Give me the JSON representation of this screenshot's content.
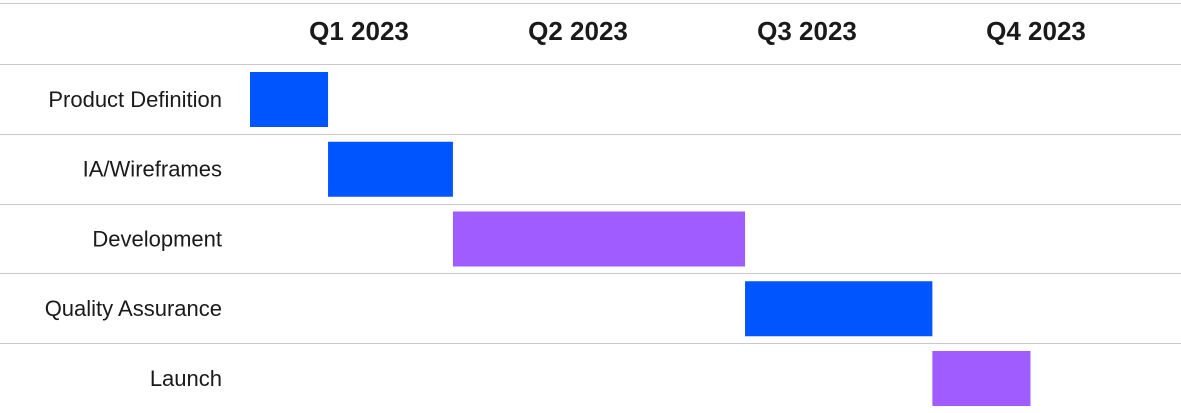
{
  "chart_data": {
    "type": "gantt",
    "quarters": [
      "Q1 2023",
      "Q2 2023",
      "Q3 2023",
      "Q4 2023"
    ],
    "time_unit": "quarter",
    "xlim": [
      0,
      4
    ],
    "colors": {
      "blue": "#0055FF",
      "purple": "#A15CFF",
      "grid": "#C9C9C9",
      "text": "#1A1A1A"
    },
    "tasks": [
      {
        "name": "Product Definition",
        "start": 0.0,
        "end": 0.35,
        "color": "blue"
      },
      {
        "name": "IA/Wireframes",
        "start": 0.35,
        "end": 0.91,
        "color": "blue"
      },
      {
        "name": "Development",
        "start": 0.91,
        "end": 2.22,
        "color": "purple"
      },
      {
        "name": "Quality Assurance",
        "start": 2.22,
        "end": 3.06,
        "color": "blue"
      },
      {
        "name": "Launch",
        "start": 3.06,
        "end": 3.5,
        "color": "purple"
      }
    ]
  }
}
